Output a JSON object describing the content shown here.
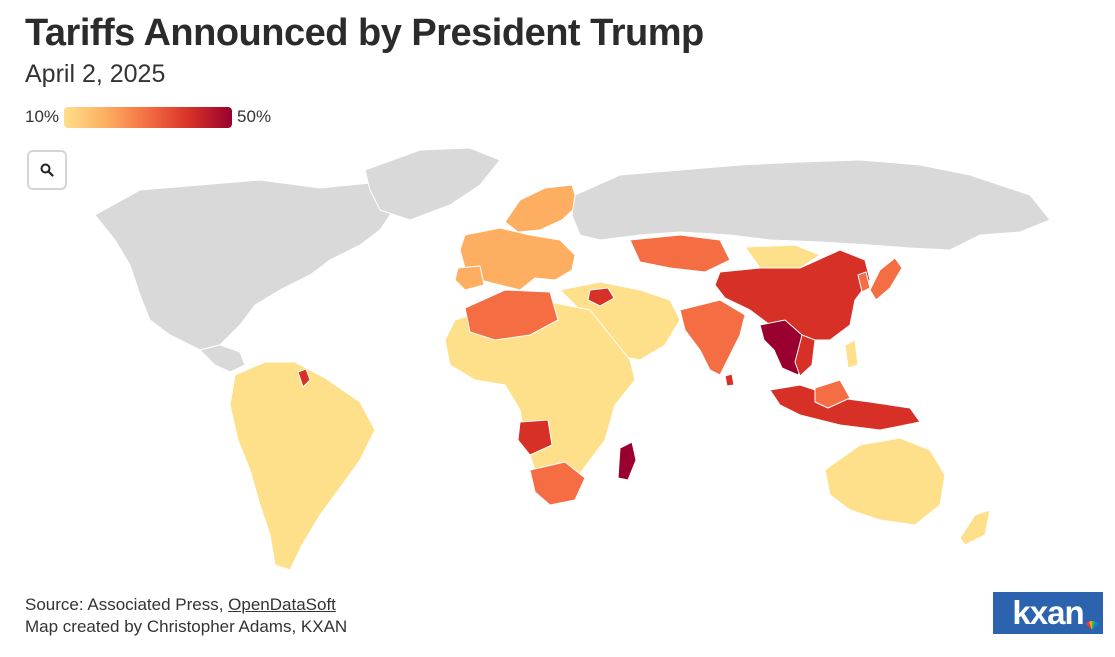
{
  "header": {
    "title": "Tariffs Announced by President Trump",
    "subtitle": "April 2, 2025"
  },
  "legend": {
    "min_label": "10%",
    "max_label": "50%",
    "gradient": [
      "#fedf8a",
      "#fdae61",
      "#f46d43",
      "#d73027",
      "#99002f"
    ]
  },
  "controls": {
    "zoom_icon": "search-icon"
  },
  "map": {
    "colors": {
      "land": "#d9d9d9",
      "t10": "#fedf8a",
      "t20": "#fdae61",
      "t30": "#f46d43",
      "t40": "#d73027",
      "t50": "#99002f"
    },
    "regions": [
      {
        "name": "North America",
        "tariff": null
      },
      {
        "name": "Greenland",
        "tariff": null
      },
      {
        "name": "South America",
        "tariff": "10%"
      },
      {
        "name": "Guyana",
        "tariff": "38%"
      },
      {
        "name": "Europe",
        "tariff": "20%"
      },
      {
        "name": "Scandinavia",
        "tariff": "20%"
      },
      {
        "name": "Russia",
        "tariff": null
      },
      {
        "name": "Kazakhstan",
        "tariff": "27%"
      },
      {
        "name": "China",
        "tariff": "34%"
      },
      {
        "name": "India",
        "tariff": "26%"
      },
      {
        "name": "Southeast Asia",
        "tariff": "46%"
      },
      {
        "name": "Japan",
        "tariff": "24%"
      },
      {
        "name": "Indonesia",
        "tariff": "32%"
      },
      {
        "name": "Australia",
        "tariff": "10%"
      },
      {
        "name": "Africa",
        "tariff": "10%"
      },
      {
        "name": "Libya / Algeria",
        "tariff": "30%"
      },
      {
        "name": "Angola",
        "tariff": "32%"
      },
      {
        "name": "Southern Africa",
        "tariff": "30%"
      },
      {
        "name": "Madagascar",
        "tariff": "47%"
      },
      {
        "name": "Middle East",
        "tariff": "10%"
      },
      {
        "name": "Syria",
        "tariff": "41%"
      }
    ]
  },
  "footer": {
    "source_prefix": "Source: Associated Press, ",
    "source_link": "OpenDataSoft",
    "credit": "Map created by Christopher Adams, KXAN",
    "logo_text": "kxan"
  }
}
